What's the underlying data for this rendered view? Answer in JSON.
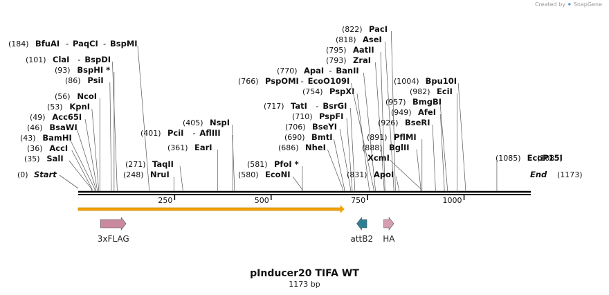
{
  "header": {
    "credit_prefix": "Created by",
    "credit_brand": "SnapGene"
  },
  "map": {
    "title": "pInducer20 TIFA WT",
    "length_label": "1173 bp",
    "length": 1173,
    "start_label": "Start",
    "end_label": "End",
    "start_pos": "(0)",
    "end_pos": "(1173)",
    "ticks": [
      250,
      500,
      750,
      1000
    ]
  },
  "sites": [
    {
      "name": "BfuAI",
      "pos": 184,
      "pos_text": "(184)",
      "extra": [
        "PaqCI",
        "BspMI"
      ]
    },
    {
      "name": "ClaI",
      "pos": 101,
      "pos_text": "(101)",
      "extra": [
        "BspDI"
      ]
    },
    {
      "name": "BspHI *",
      "pos": 93,
      "pos_text": "(93)",
      "extra": []
    },
    {
      "name": "PsiI",
      "pos": 86,
      "pos_text": "(86)",
      "extra": []
    },
    {
      "name": "NcoI",
      "pos": 56,
      "pos_text": "(56)",
      "extra": []
    },
    {
      "name": "KpnI",
      "pos": 53,
      "pos_text": "(53)",
      "extra": []
    },
    {
      "name": "Acc65I",
      "pos": 49,
      "pos_text": "(49)",
      "extra": []
    },
    {
      "name": "BsaWI",
      "pos": 46,
      "pos_text": "(46)",
      "extra": []
    },
    {
      "name": "BamHI",
      "pos": 43,
      "pos_text": "(43)",
      "extra": []
    },
    {
      "name": "AccI",
      "pos": 36,
      "pos_text": "(36)",
      "extra": []
    },
    {
      "name": "SalI",
      "pos": 35,
      "pos_text": "(35)",
      "extra": []
    },
    {
      "name": "NruI",
      "pos": 248,
      "pos_text": "(248)",
      "extra": []
    },
    {
      "name": "TaqII",
      "pos": 271,
      "pos_text": "(271)",
      "extra": []
    },
    {
      "name": "EarI",
      "pos": 361,
      "pos_text": "(361)",
      "extra": []
    },
    {
      "name": "PciI",
      "pos": 401,
      "pos_text": "(401)",
      "extra": [
        "AflIII"
      ]
    },
    {
      "name": "NspI",
      "pos": 405,
      "pos_text": "(405)",
      "extra": []
    },
    {
      "name": "EcoNI",
      "pos": 580,
      "pos_text": "(580)",
      "extra": []
    },
    {
      "name": "PfoI *",
      "pos": 581,
      "pos_text": "(581)",
      "extra": []
    },
    {
      "name": "NheI",
      "pos": 686,
      "pos_text": "(686)",
      "extra": []
    },
    {
      "name": "BmtI",
      "pos": 690,
      "pos_text": "(690)",
      "extra": []
    },
    {
      "name": "BseYI",
      "pos": 706,
      "pos_text": "(706)",
      "extra": []
    },
    {
      "name": "PspFI",
      "pos": 710,
      "pos_text": "(710)",
      "extra": []
    },
    {
      "name": "TatI",
      "pos": 717,
      "pos_text": "(717)",
      "extra": [
        "BsrGI"
      ]
    },
    {
      "name": "PspXI",
      "pos": 754,
      "pos_text": "(754)",
      "extra": []
    },
    {
      "name": "PspOMI",
      "pos": 766,
      "pos_text": "(766)",
      "extra": [
        "EcoO109I"
      ]
    },
    {
      "name": "ApaI",
      "pos": 770,
      "pos_text": "(770)",
      "extra": [
        "BanII"
      ]
    },
    {
      "name": "ZraI",
      "pos": 793,
      "pos_text": "(793)",
      "extra": []
    },
    {
      "name": "AatII",
      "pos": 795,
      "pos_text": "(795)",
      "extra": []
    },
    {
      "name": "AseI",
      "pos": 818,
      "pos_text": "(818)",
      "extra": []
    },
    {
      "name": "PacI",
      "pos": 822,
      "pos_text": "(822)",
      "extra": []
    },
    {
      "name": "ApoI",
      "pos": 831,
      "pos_text": "(831)",
      "extra": []
    },
    {
      "name": "BglII",
      "pos": 888,
      "pos_text": "(888)",
      "extra": []
    },
    {
      "name": "XcmI",
      "pos": 888,
      "pos_text": "",
      "extra": []
    },
    {
      "name": "PflMI",
      "pos": 891,
      "pos_text": "(891)",
      "extra": []
    },
    {
      "name": "BseRI",
      "pos": 926,
      "pos_text": "(926)",
      "extra": []
    },
    {
      "name": "AfeI",
      "pos": 949,
      "pos_text": "(949)",
      "extra": []
    },
    {
      "name": "BmgBI",
      "pos": 957,
      "pos_text": "(957)",
      "extra": []
    },
    {
      "name": "EciI",
      "pos": 982,
      "pos_text": "(982)",
      "extra": []
    },
    {
      "name": "Bpu10I",
      "pos": 1004,
      "pos_text": "(1004)",
      "extra": []
    },
    {
      "name": "EcoP15I",
      "pos": 1085,
      "pos_text": "(1085)",
      "extra": []
    }
  ],
  "features": [
    {
      "name": "3xFLAG",
      "start": 58,
      "end": 124,
      "direction": "forward",
      "color": "#c9899f"
    },
    {
      "name": "attB2",
      "start": 722,
      "end": 748,
      "direction": "reverse",
      "color": "#2e7f95"
    },
    {
      "name": "HA",
      "start": 792,
      "end": 818,
      "direction": "forward",
      "color": "#d49db2"
    }
  ],
  "orf": {
    "start": 0,
    "end": 690,
    "color": "#f2a100"
  }
}
